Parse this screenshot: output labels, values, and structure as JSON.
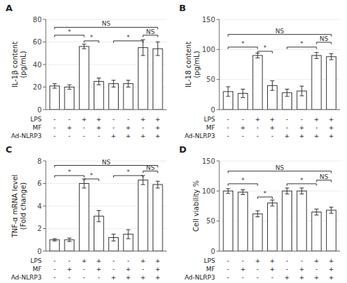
{
  "chart_data": [
    {
      "type": "bar",
      "title": "A",
      "y_label": "IL-1β content\n(pg/mL)",
      "color": "#ffffff",
      "ylim": [
        0,
        80
      ],
      "yticks": [
        0,
        20,
        40,
        60,
        80
      ],
      "tick_labels": "y",
      "values": [
        21,
        20,
        56,
        25,
        23,
        23,
        55,
        54
      ],
      "errors": [
        2,
        2,
        2,
        3,
        3,
        3,
        7,
        6
      ],
      "annotations": [
        {
          "x1": 0,
          "x2": 2,
          "y": 66,
          "label": "*"
        },
        {
          "x1": 2,
          "x2": 3,
          "y": 61,
          "label": "*"
        },
        {
          "x1": 4,
          "x2": 6,
          "y": 61,
          "label": "*"
        },
        {
          "x1": 6,
          "x2": 7,
          "y": 66,
          "label": "NS"
        },
        {
          "x1": 0,
          "x2": 7,
          "y": 73,
          "label": "NS"
        }
      ],
      "condition_rows": [
        {
          "label": "LPS",
          "values": [
            "-",
            "-",
            "+",
            "+",
            "-",
            "-",
            "+",
            "+"
          ]
        },
        {
          "label": "MF",
          "values": [
            "-",
            "+",
            "-",
            "+",
            "-",
            "+",
            "-",
            "+"
          ]
        },
        {
          "label": "Ad-NLRP3",
          "values": [
            "-",
            "-",
            "-",
            "-",
            "+",
            "+",
            "+",
            "+"
          ]
        }
      ]
    },
    {
      "type": "bar",
      "title": "B",
      "y_label": "IL-18 content\n(pg/mL)",
      "color": "#ffffff",
      "ylim": [
        0,
        150
      ],
      "yticks": [
        0,
        50,
        100,
        150
      ],
      "tick_labels": "y",
      "values": [
        30,
        27,
        90,
        40,
        28,
        31,
        90,
        88
      ],
      "errors": [
        8,
        7,
        4,
        8,
        6,
        8,
        5,
        5
      ],
      "annotations": [
        {
          "x1": 0,
          "x2": 2,
          "y": 104,
          "label": "*"
        },
        {
          "x1": 2,
          "x2": 3,
          "y": 97,
          "label": "*"
        },
        {
          "x1": 4,
          "x2": 6,
          "y": 104,
          "label": "*"
        },
        {
          "x1": 6,
          "x2": 7,
          "y": 112,
          "label": "NS"
        },
        {
          "x1": 0,
          "x2": 7,
          "y": 125,
          "label": "NS"
        }
      ],
      "condition_rows": [
        {
          "label": "LPS",
          "values": [
            "-",
            "-",
            "+",
            "+",
            "-",
            "-",
            "+",
            "+"
          ]
        },
        {
          "label": "MF",
          "values": [
            "-",
            "+",
            "-",
            "+",
            "-",
            "+",
            "-",
            "+"
          ]
        },
        {
          "label": "Ad-NLRP3",
          "values": [
            "-",
            "-",
            "-",
            "-",
            "+",
            "+",
            "+",
            "+"
          ]
        }
      ]
    },
    {
      "type": "bar",
      "title": "C",
      "y_label": "TNF-α mRNA level\n(Fold change)",
      "color": "#ffffff",
      "ylim": [
        0,
        8
      ],
      "yticks": [
        0,
        2,
        4,
        6,
        8
      ],
      "tick_labels": "y",
      "values": [
        1.0,
        1.0,
        6.0,
        3.1,
        1.2,
        1.5,
        6.3,
        5.9
      ],
      "errors": [
        0.1,
        0.15,
        0.4,
        0.5,
        0.3,
        0.4,
        0.4,
        0.3
      ],
      "annotations": [
        {
          "x1": 0,
          "x2": 2,
          "y": 6.7,
          "label": "*"
        },
        {
          "x1": 2,
          "x2": 3,
          "y": 6.4,
          "label": "*"
        },
        {
          "x1": 4,
          "x2": 6,
          "y": 6.7,
          "label": "*"
        },
        {
          "x1": 6,
          "x2": 7,
          "y": 7.1,
          "label": "NS"
        },
        {
          "x1": 0,
          "x2": 7,
          "y": 7.6,
          "label": "NS"
        }
      ],
      "condition_rows": [
        {
          "label": "LPS",
          "values": [
            "-",
            "-",
            "+",
            "+",
            "-",
            "-",
            "+",
            "+"
          ]
        },
        {
          "label": "MF",
          "values": [
            "-",
            "+",
            "-",
            "+",
            "-",
            "+",
            "-",
            "+"
          ]
        },
        {
          "label": "Ad-NLRP3",
          "values": [
            "-",
            "-",
            "-",
            "-",
            "+",
            "+",
            "+",
            "+"
          ]
        }
      ]
    },
    {
      "type": "bar",
      "title": "D",
      "y_label": "Cell viability %",
      "color": "#ffffff",
      "ylim": [
        0,
        150
      ],
      "yticks": [
        0,
        50,
        100,
        150
      ],
      "tick_labels": "y",
      "values": [
        100,
        98,
        62,
        80,
        100,
        100,
        65,
        68
      ],
      "errors": [
        4,
        4,
        5,
        5,
        5,
        5,
        5,
        5
      ],
      "annotations": [
        {
          "x1": 0,
          "x2": 2,
          "y": 112,
          "label": "*"
        },
        {
          "x1": 2,
          "x2": 3,
          "y": 90,
          "label": "*"
        },
        {
          "x1": 4,
          "x2": 6,
          "y": 112,
          "label": "*"
        },
        {
          "x1": 6,
          "x2": 7,
          "y": 118,
          "label": "NS"
        },
        {
          "x1": 0,
          "x2": 7,
          "y": 133,
          "label": "NS"
        }
      ],
      "condition_rows": [
        {
          "label": "LPS",
          "values": [
            "-",
            "-",
            "+",
            "+",
            "-",
            "-",
            "+",
            "+"
          ]
        },
        {
          "label": "MF",
          "values": [
            "-",
            "+",
            "-",
            "+",
            "-",
            "+",
            "-",
            "+"
          ]
        },
        {
          "label": "Ad-NLRP3",
          "values": [
            "-",
            "-",
            "-",
            "-",
            "+",
            "+",
            "+",
            "+"
          ]
        }
      ]
    }
  ]
}
